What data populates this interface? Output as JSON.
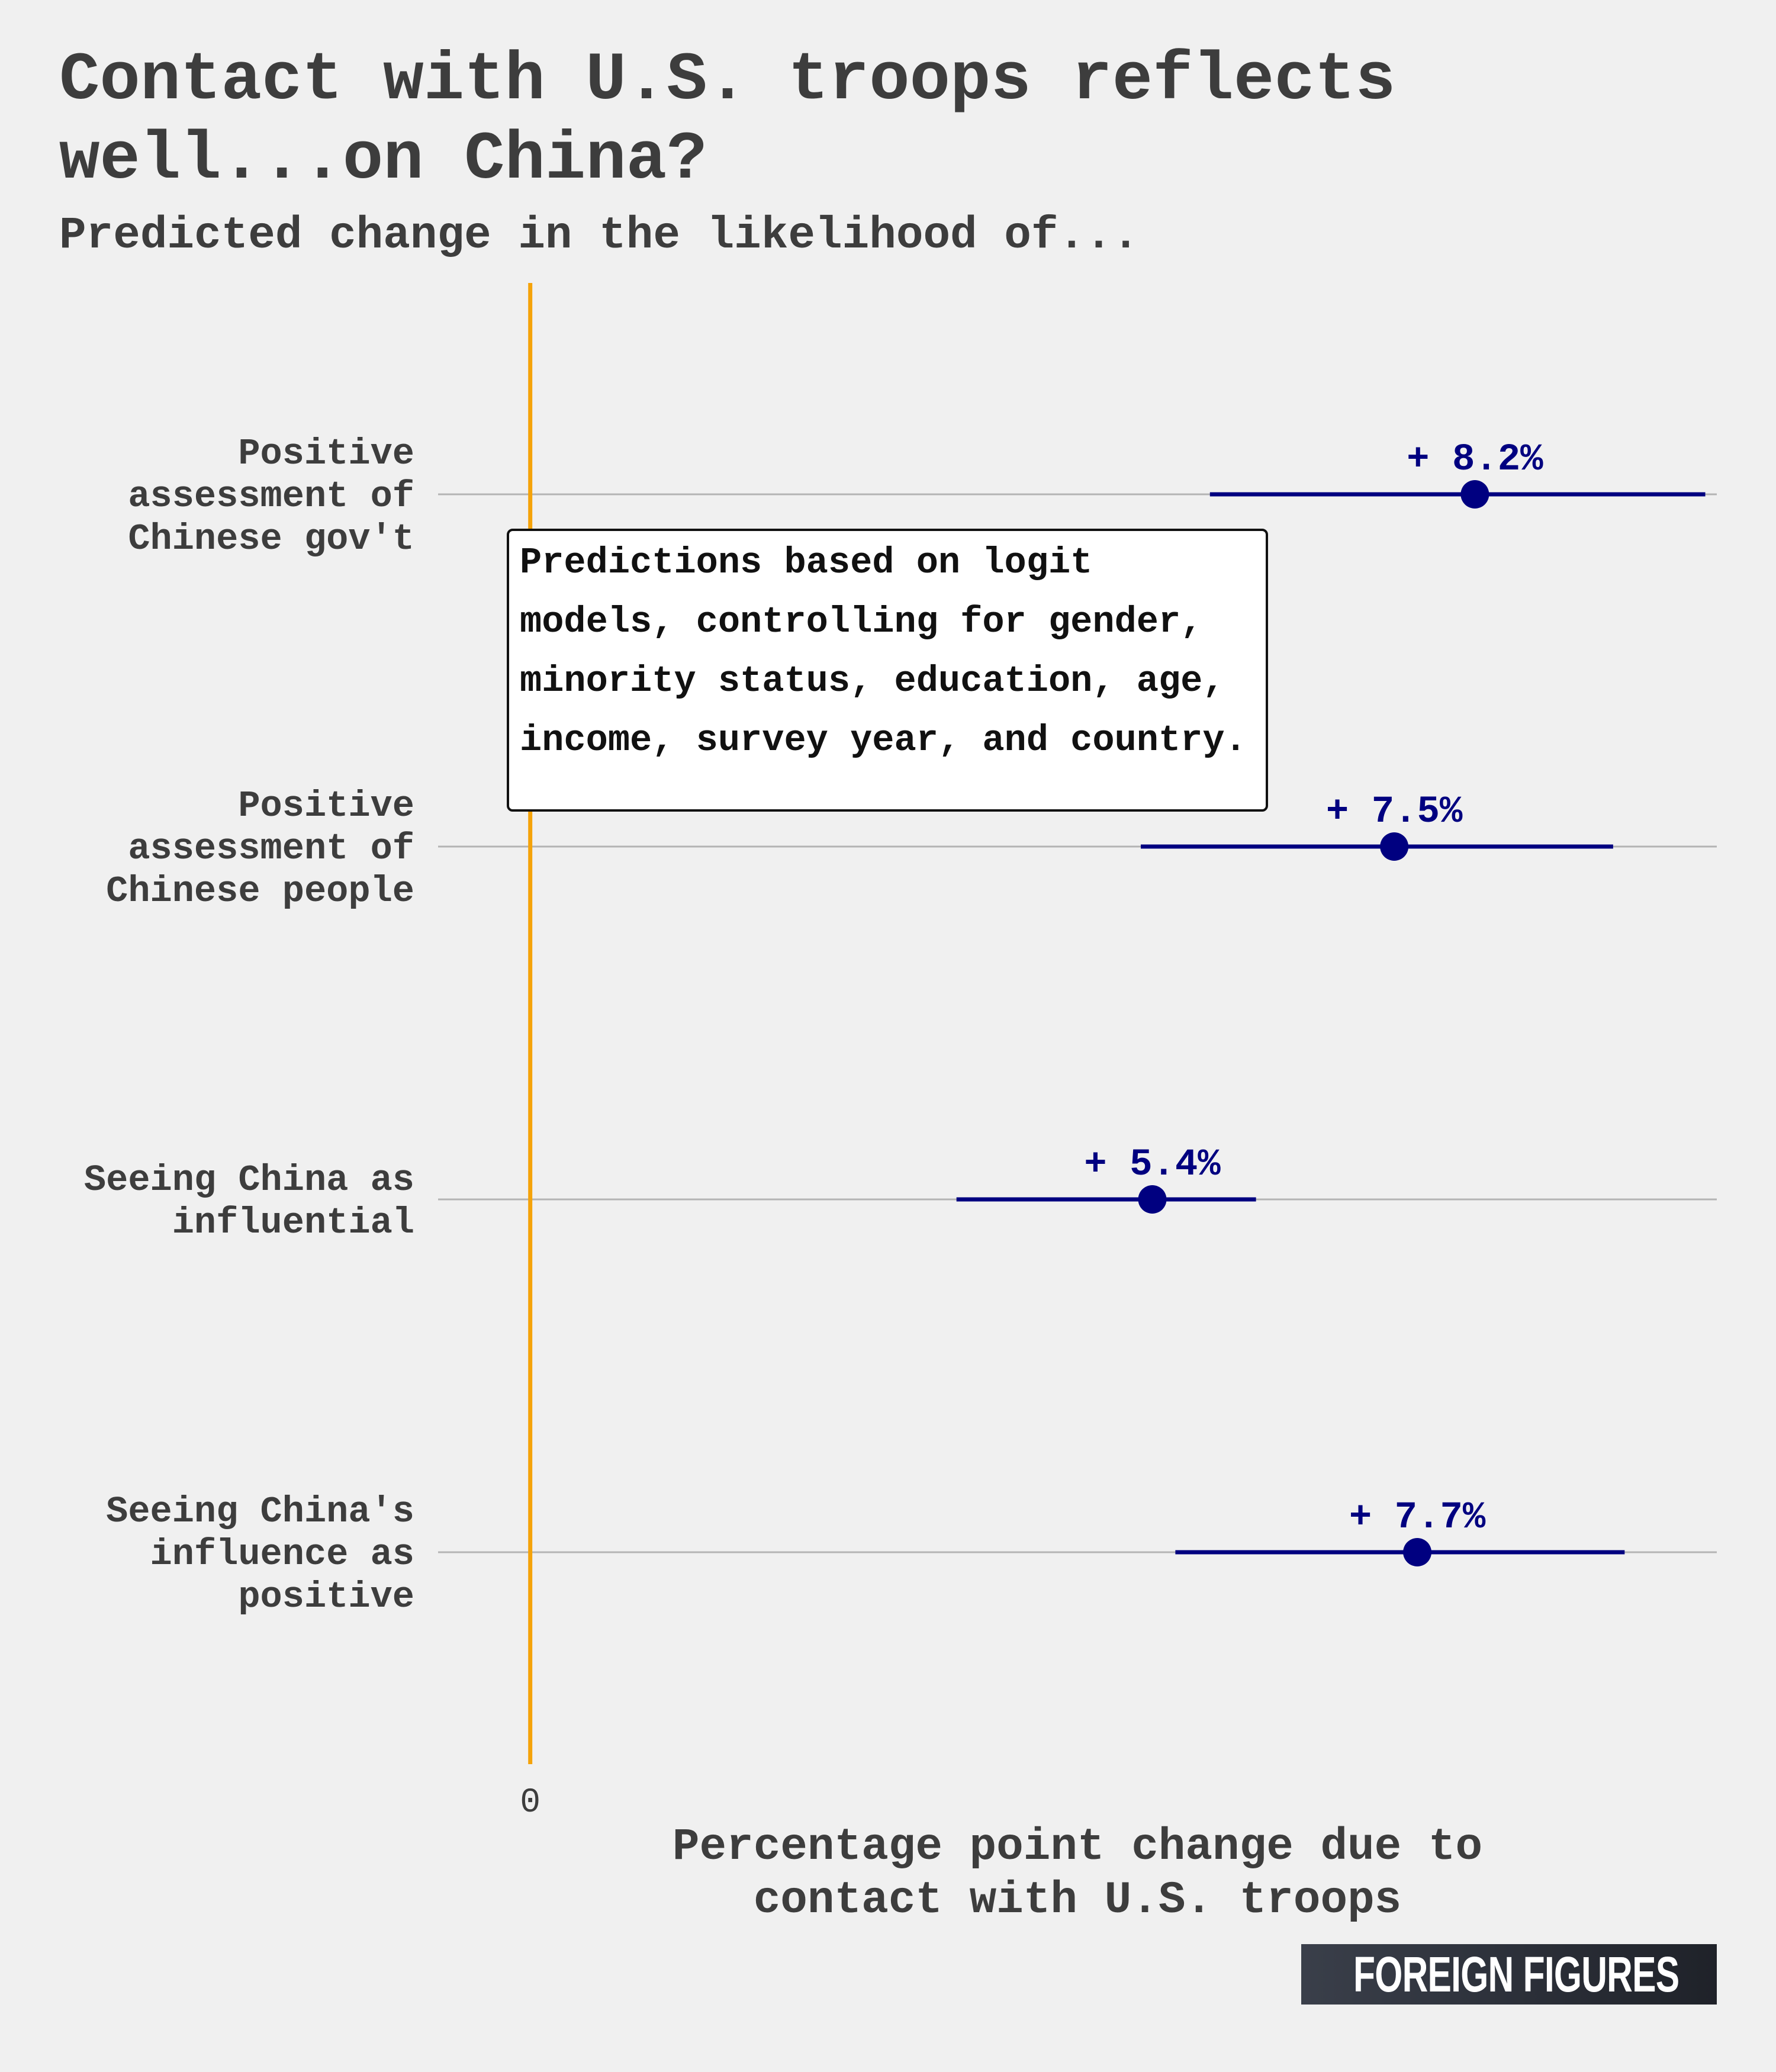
{
  "header": {
    "title": "Contact with U.S. troops reflects well...on China?",
    "subtitle": "Predicted change in the likelihood of..."
  },
  "note": "Predictions based on logit models, controlling for gender, minority status, education, age, income, survey year, and country.",
  "brand": "FOREIGN FIGURES",
  "colors": {
    "background": "#f0f0f0",
    "point": "#000080",
    "zero_line": "#f5a30a",
    "grid": "#b4b4b4",
    "text": "#3d3d3d"
  },
  "chart_data": {
    "type": "dot-errorbar",
    "xlabel": "Percentage point change due to contact with U.S. troops",
    "x_ticks": [
      "0"
    ],
    "xlim": [
      -0.8,
      10.3
    ],
    "grid": "horizontal",
    "categories": [
      {
        "label": [
          "Positive",
          "assessment of",
          "Chinese gov't"
        ],
        "value": 8.2,
        "low": 5.9,
        "high": 10.2,
        "value_label": "+ 8.2%"
      },
      {
        "label": [
          "Positive",
          "assessment of",
          "Chinese people"
        ],
        "value": 7.5,
        "low": 5.3,
        "high": 9.4,
        "value_label": "+ 7.5%"
      },
      {
        "label": [
          "Seeing China as",
          "influential"
        ],
        "value": 5.4,
        "low": 3.7,
        "high": 6.3,
        "value_label": "+ 5.4%"
      },
      {
        "label": [
          "Seeing China's",
          "influence as",
          "positive"
        ],
        "value": 7.7,
        "low": 5.6,
        "high": 9.5,
        "value_label": "+ 7.7%"
      }
    ]
  }
}
